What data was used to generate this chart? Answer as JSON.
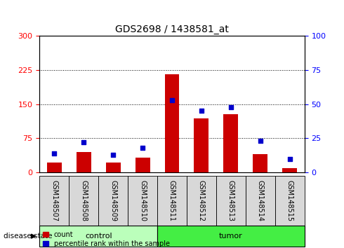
{
  "title": "GDS2698 / 1438581_at",
  "samples": [
    "GSM148507",
    "GSM148508",
    "GSM148509",
    "GSM148510",
    "GSM148511",
    "GSM148512",
    "GSM148513",
    "GSM148514",
    "GSM148515"
  ],
  "count_values": [
    22,
    45,
    22,
    32,
    215,
    118,
    128,
    40,
    10
  ],
  "percentile_values": [
    14,
    22,
    13,
    18,
    53,
    45,
    48,
    23,
    10
  ],
  "left_ylim": [
    0,
    300
  ],
  "right_ylim": [
    0,
    100
  ],
  "left_yticks": [
    0,
    75,
    150,
    225,
    300
  ],
  "right_yticks": [
    0,
    25,
    50,
    75,
    100
  ],
  "bar_color": "#cc0000",
  "dot_color": "#0000cc",
  "control_color": "#bbffbb",
  "tumor_color": "#44ee44",
  "legend_count": "count",
  "legend_percentile": "percentile rank within the sample",
  "bar_width": 0.5,
  "dot_size": 25,
  "title_fontsize": 10,
  "axis_fontsize": 8,
  "label_fontsize": 7,
  "group_fontsize": 8
}
